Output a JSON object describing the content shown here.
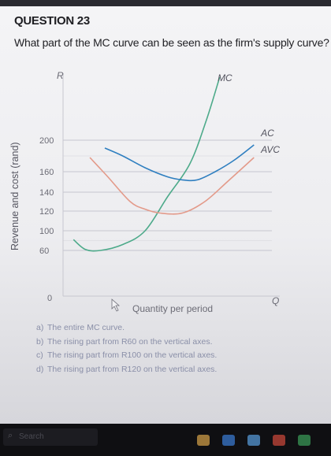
{
  "question": {
    "heading": "QUESTION 23",
    "text": "What part of the MC curve can be seen as the firm's supply curve?"
  },
  "chart_data": {
    "type": "line",
    "xlabel": "Quantity per period",
    "ylabel": "Revenue and cost (rand)",
    "y_axis_letter": "R",
    "x_axis_letter": "Q",
    "origin_label": "0",
    "yticks": [
      "200",
      "160",
      "140",
      "120",
      "100",
      "60"
    ],
    "ytick_values": [
      200,
      160,
      140,
      120,
      100,
      60
    ],
    "grid": true,
    "series": [
      {
        "name": "MC",
        "color": "#4daa8a",
        "x": [
          0.7,
          1.5,
          2.5,
          4,
          5.5,
          7,
          8.5,
          9.6,
          10.5
        ],
        "y": [
          82,
          62,
          60,
          72,
          100,
          135,
          170,
          225,
          280
        ]
      },
      {
        "name": "AC",
        "color": "#2f7fc0",
        "x": [
          2.8,
          4,
          5.5,
          7,
          8,
          9,
          10.2,
          11.5,
          12.8
        ],
        "y": [
          190,
          180,
          165,
          155,
          152,
          152,
          160,
          175,
          194
        ]
      },
      {
        "name": "AVC",
        "color": "#e39a8a",
        "x": [
          1.8,
          3,
          4.5,
          5.5,
          6.5,
          8,
          9.5,
          11,
          12.8
        ],
        "y": [
          178,
          155,
          130,
          122,
          118,
          118,
          130,
          150,
          178
        ]
      }
    ]
  },
  "options": [
    {
      "letter": "a)",
      "text": "The entire MC curve."
    },
    {
      "letter": "b)",
      "text": "The rising part from R60 on the vertical axes."
    },
    {
      "letter": "c)",
      "text": "The rising part from R100 on the vertical axes."
    },
    {
      "letter": "d)",
      "text": "The rising part from R120 on the vertical axes."
    }
  ],
  "taskbar": {
    "search_placeholder": "Search",
    "icon_colors": [
      "#d9a44a",
      "#3c7fd8",
      "#5aa0e0",
      "#d24a3c",
      "#3ca05a"
    ]
  }
}
